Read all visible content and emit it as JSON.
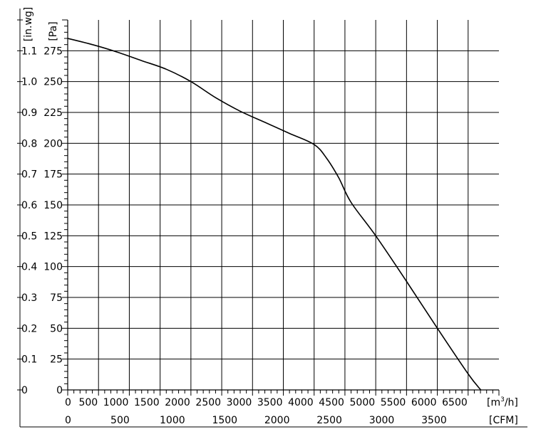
{
  "chart_data": {
    "type": "line",
    "x_unit": "[m³/h]",
    "x_unit_base": "[m",
    "x_unit_sup": "3",
    "x_unit_tail": "/h]",
    "x2_unit": "[CFM]",
    "y_unit": "[Pa]",
    "y2_unit": "[in.wg]",
    "xlim": [
      0,
      7000
    ],
    "ylim": [
      0,
      300
    ],
    "x_ticks": [
      0,
      500,
      1000,
      1500,
      2000,
      2500,
      3000,
      3500,
      4000,
      4500,
      5000,
      5500,
      6000,
      6500
    ],
    "x_tick_labels": [
      "0",
      "500",
      "1000",
      "1500",
      "2000",
      "2500",
      "3000",
      "3500",
      "4000",
      "4500",
      "5000",
      "5500",
      "6000",
      "6500"
    ],
    "cfm_ticks": [
      0,
      500,
      1000,
      1500,
      2000,
      2500,
      3000,
      3500
    ],
    "cfm_tick_labels": [
      "0",
      "500",
      "1000",
      "1500",
      "2000",
      "2500",
      "3000",
      "3500"
    ],
    "y_ticks": [
      0,
      25,
      50,
      75,
      100,
      125,
      150,
      175,
      200,
      225,
      250,
      275
    ],
    "y_tick_labels": [
      "0",
      "25",
      "50",
      "75",
      "100",
      "125",
      "150",
      "175",
      "200",
      "225",
      "250",
      "275"
    ],
    "inwg_tick_labels": [
      "0",
      "0.1",
      "0.2",
      "0.3",
      "0.4",
      "0.5",
      "0.6",
      "0.7",
      "0.8",
      "0.9",
      "1.0",
      "1.1"
    ],
    "grid": true,
    "series": [
      {
        "x": [
          0,
          400,
          800,
          1200,
          1600,
          2000,
          2400,
          2800,
          3200,
          3600,
          4000,
          4200,
          4400,
          4600,
          5000,
          5500,
          6000,
          6500,
          6800
        ],
        "values": [
          285,
          280,
          274,
          267,
          260,
          250,
          237,
          226,
          217,
          208,
          199,
          188,
          172,
          152,
          125,
          88,
          50,
          13,
          -6
        ]
      }
    ]
  }
}
